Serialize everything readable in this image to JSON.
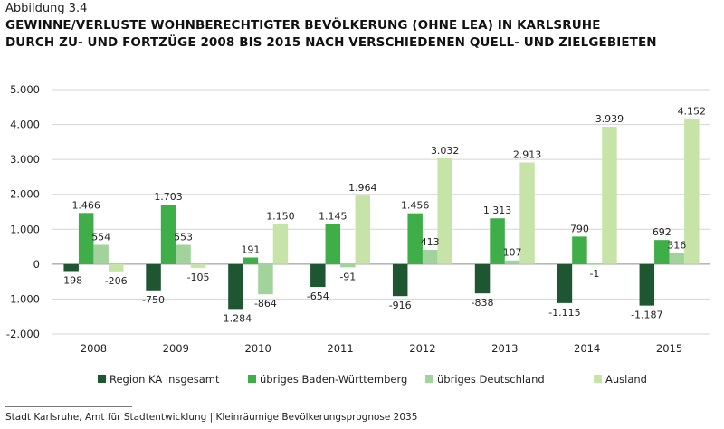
{
  "header": {
    "caption": "Abbildung 3.4",
    "title_line1": "GEWINNE/VERLUSTE WOHNBERECHTIGTER BEVÖLKERUNG (OHNE LEA) IN KARLSRUHE",
    "title_line2": "DURCH ZU- UND FORTZÜGE 2008 BIS 2015 NACH VERSCHIEDENEN QUELL- UND ZIELGEBIETEN"
  },
  "footer": {
    "source": "Stadt Karlsruhe, Amt für Stadtentwicklung | Kleinräumige Bevölkerungsprognose 2035"
  },
  "chart_data": {
    "type": "bar",
    "title": "GEWINNE/VERLUSTE WOHNBERECHTIGTER BEVÖLKERUNG (OHNE LEA) IN KARLSRUHE DURCH ZU- UND FORTZÜGE 2008 BIS 2015 NACH VERSCHIEDENEN QUELL- UND ZIELGEBIETEN",
    "categories": [
      "2008",
      "2009",
      "2010",
      "2011",
      "2012",
      "2013",
      "2014",
      "2015"
    ],
    "ylim": [
      -2000,
      5000
    ],
    "yticks": [
      -2000,
      -1000,
      0,
      1000,
      2000,
      3000,
      4000,
      5000
    ],
    "ytick_labels": [
      "-2.000",
      "-1.000",
      "0",
      "1.000",
      "2.000",
      "3.000",
      "4.000",
      "5.000"
    ],
    "grid": true,
    "legend_position": "bottom",
    "series": [
      {
        "name": "Region KA insgesamt",
        "color": "#1e5631",
        "values": [
          -198,
          -750,
          -1284,
          -654,
          -916,
          -838,
          -1115,
          -1187
        ],
        "labels": [
          "-198",
          "-750",
          "-1.284",
          "-654",
          "-916",
          "-838",
          "-1.115",
          "-1.187"
        ]
      },
      {
        "name": "übriges Baden-Württemberg",
        "color": "#3fae49",
        "values": [
          1466,
          1703,
          191,
          1145,
          1456,
          1313,
          790,
          692
        ],
        "labels": [
          "1.466",
          "1.703",
          "191",
          "1.145",
          "1.456",
          "1.313",
          "790",
          "692"
        ]
      },
      {
        "name": "übriges Deutschland",
        "color": "#a3d39c",
        "values": [
          554,
          553,
          -864,
          -91,
          413,
          107,
          -1,
          316
        ],
        "labels": [
          "554",
          "553",
          "-864",
          "-91",
          "413",
          "107",
          "-1",
          "316"
        ]
      },
      {
        "name": "Ausland",
        "color": "#c7e4a8",
        "values": [
          -206,
          -105,
          1150,
          1964,
          3032,
          2913,
          3939,
          4152
        ],
        "labels": [
          "-206",
          "-105",
          "1.150",
          "1.964",
          "3.032",
          "2.913",
          "3.939",
          "4.152"
        ]
      }
    ]
  }
}
